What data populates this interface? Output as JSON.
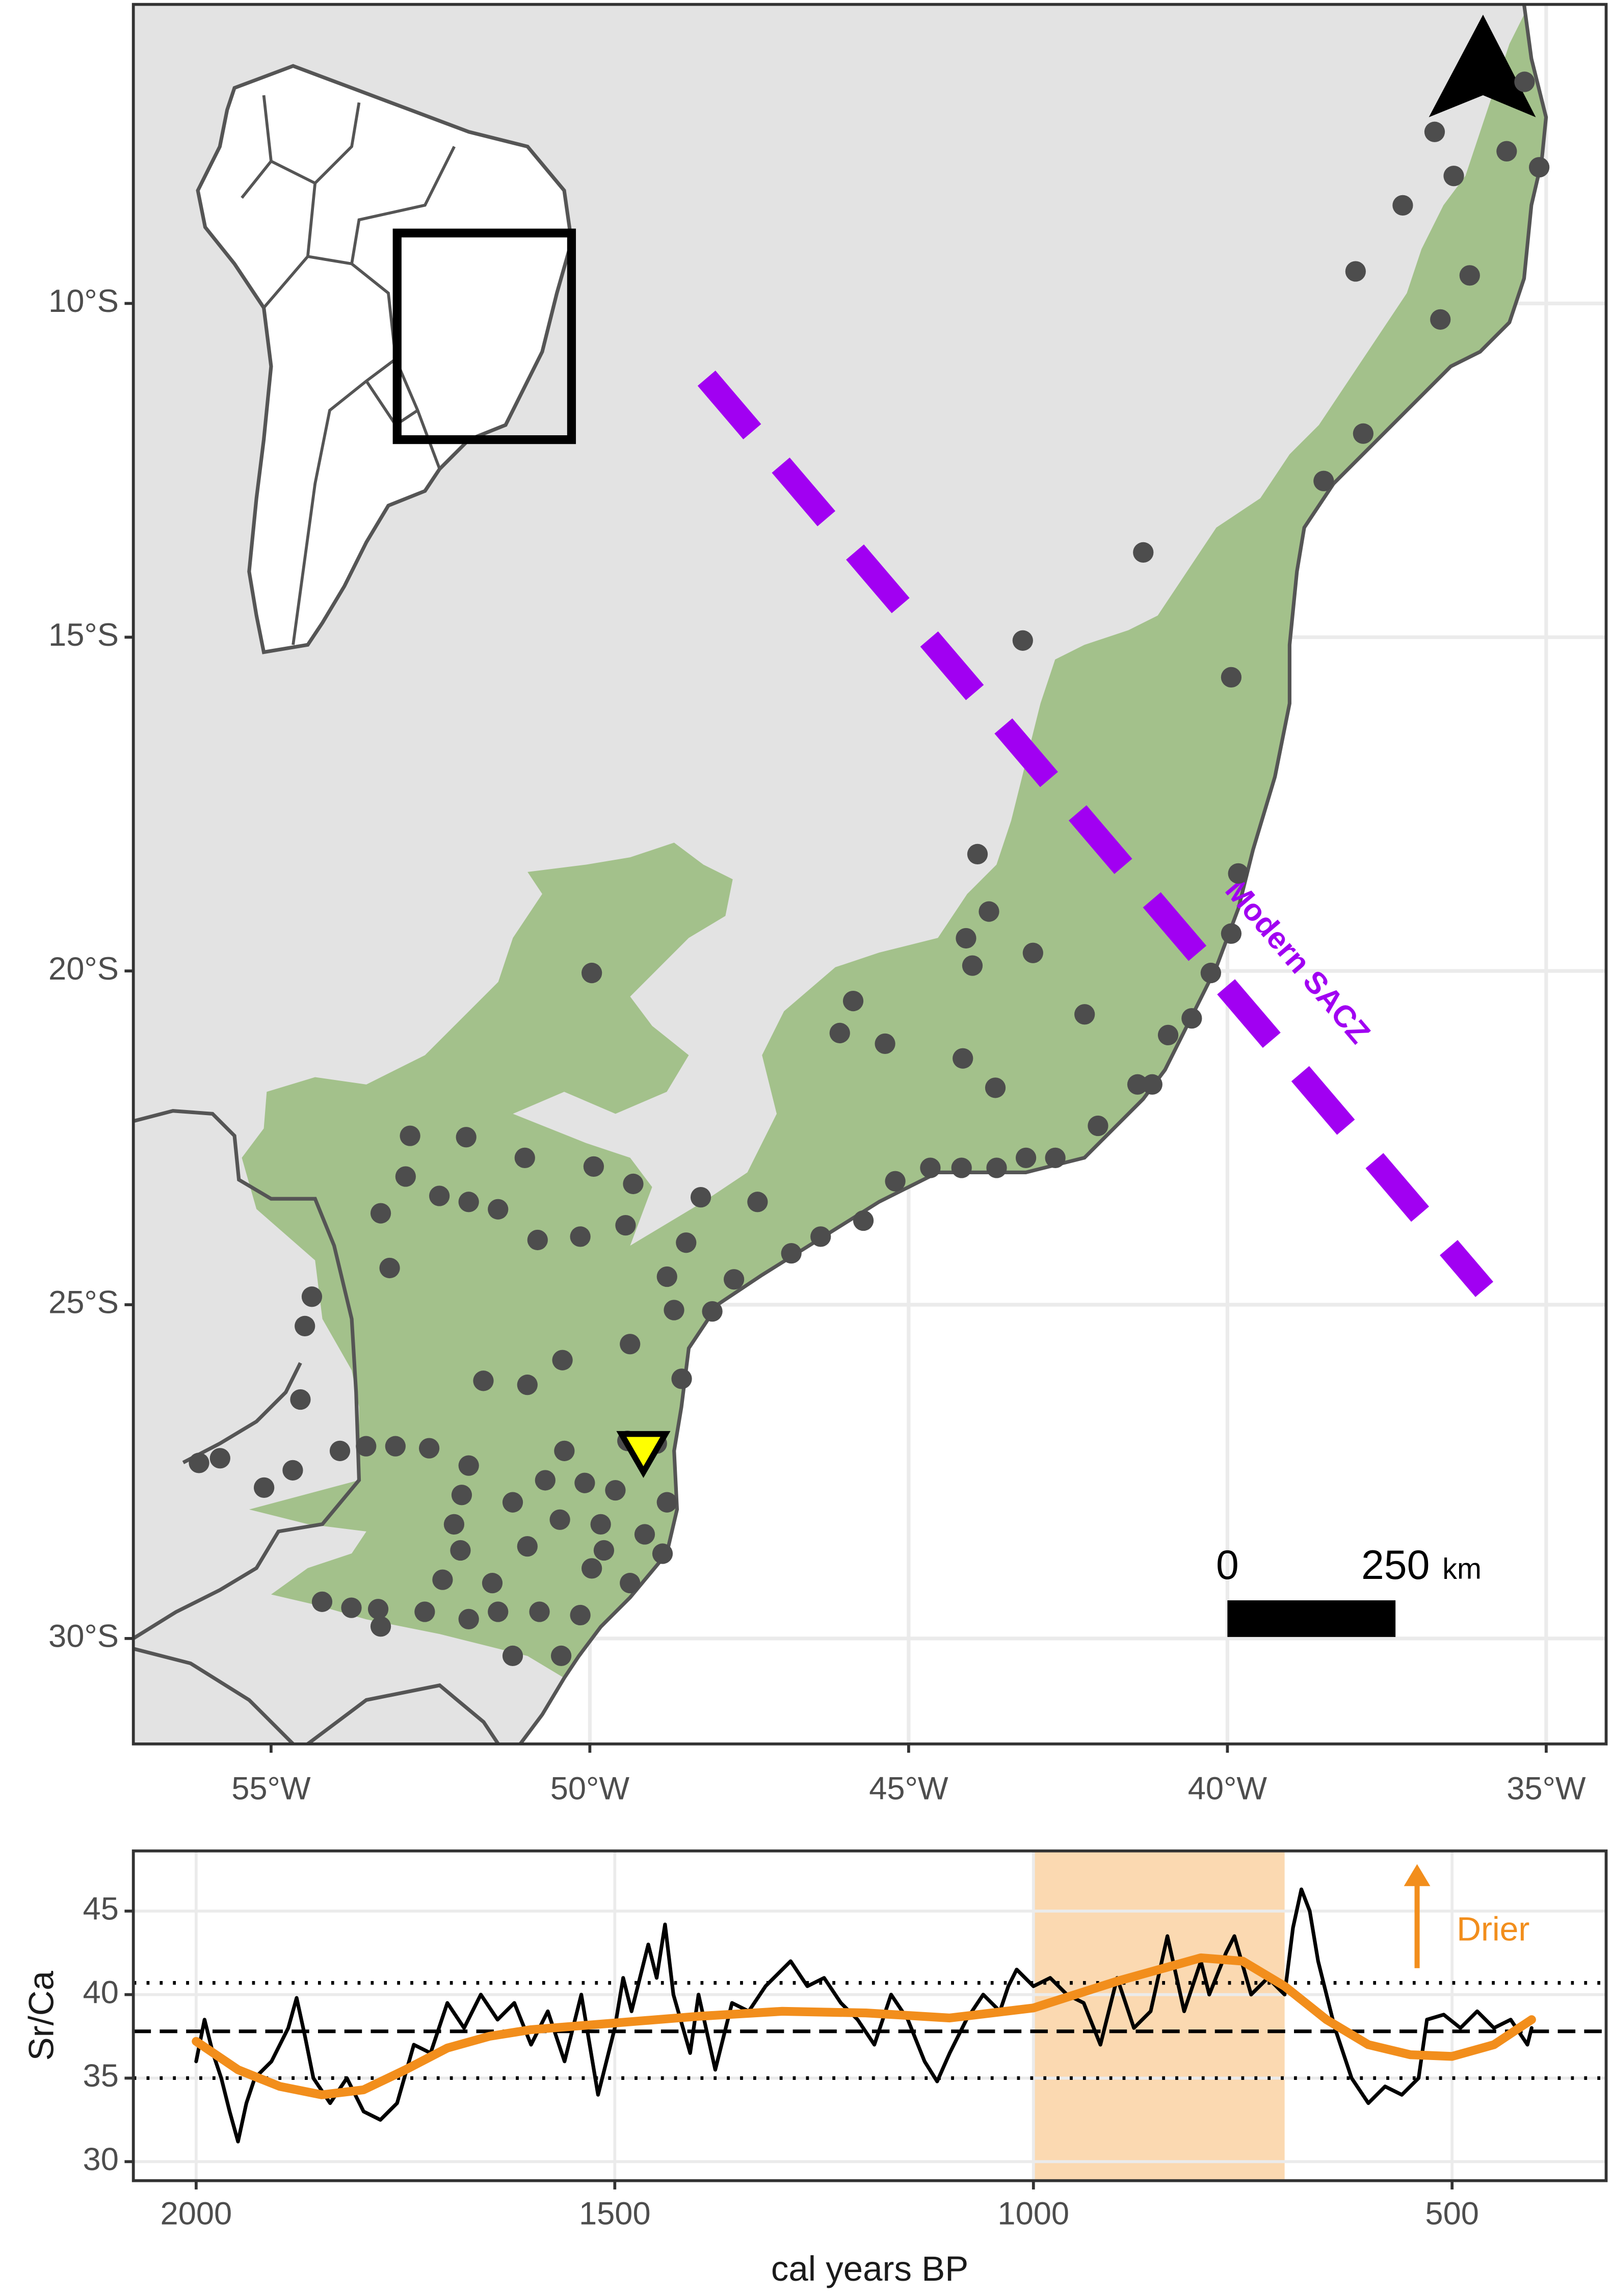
{
  "chart_data": [
    {
      "type": "map",
      "xlim": [
        -57.16,
        -34.06
      ],
      "ylim": [
        -5.52,
        -31.58
      ],
      "xticks": [
        {
          "value": -55,
          "label": "55°W"
        },
        {
          "value": -50,
          "label": "50°W"
        },
        {
          "value": -45,
          "label": "45°W"
        },
        {
          "value": -40,
          "label": "40°W"
        },
        {
          "value": -35,
          "label": "35°W"
        }
      ],
      "yticks": [
        {
          "value": -10,
          "label": "10°S"
        },
        {
          "value": -15,
          "label": "15°S"
        },
        {
          "value": -20,
          "label": "20°S"
        },
        {
          "value": -25,
          "label": "25°S"
        },
        {
          "value": -30,
          "label": "30°S"
        }
      ],
      "grid": true,
      "land_color": "#e3e3e3",
      "forest_color": "#a3c18b",
      "site_color": "#4d4d4d",
      "sites": {
        "lon": [
          -36.75,
          -36.45,
          -35.62,
          -35.34,
          -35.11,
          -37.25,
          -37.99,
          -36.66,
          -36.2,
          -37.87,
          -38.49,
          -41.32,
          -43.21,
          -39.94,
          -39.83,
          -39.94,
          -40.26,
          -40.56,
          -40.93,
          -41.18,
          -43.92,
          -43.74,
          -44.1,
          -44.0,
          -43.05,
          -42.24,
          -41.41,
          -44.15,
          -43.64,
          -45.87,
          -46.08,
          -45.37,
          -49.97,
          -42.03,
          -42.7,
          -43.16,
          -43.62,
          -44.17,
          -44.66,
          -45.21,
          -45.71,
          -46.38,
          -46.84,
          -47.37,
          -48.26,
          -47.74,
          -48.08,
          -48.49,
          -48.79,
          -49.32,
          -49.44,
          -49.94,
          -50.15,
          -50.82,
          -51.02,
          -51.44,
          -51.9,
          -52.36,
          -52.82,
          -52.89,
          -53.28,
          -51.94,
          -53.14,
          -54.36,
          -54.47,
          -54.54,
          -51.67,
          -50.98,
          -50.43,
          -49.37,
          -48.68,
          -48.56,
          -48.95,
          -49.41,
          -50.4,
          -50.7,
          -51.21,
          -51.9,
          -52.52,
          -53.05,
          -53.51,
          -53.92,
          -54.66,
          -55.11,
          -55.8,
          -56.13,
          -50.08,
          -49.6,
          -49.83,
          -49.78,
          -49.14,
          -48.86,
          -48.79,
          -49.37,
          -49.97,
          -50.47,
          -50.98,
          -51.53,
          -52.03,
          -52.31,
          -52.59,
          -53.32,
          -53.74,
          -54.2,
          -53.28,
          -51.9,
          -51.44,
          -50.79,
          -50.15,
          -50.45,
          -51.21,
          -52.13,
          -52.01
        ],
        "lat": [
          -7.43,
          -8.09,
          -7.72,
          -6.68,
          -7.96,
          -8.53,
          -9.52,
          -10.24,
          -9.58,
          -11.95,
          -12.66,
          -13.73,
          -15.05,
          -15.6,
          -18.54,
          -19.44,
          -20.03,
          -20.71,
          -20.96,
          -21.7,
          -18.25,
          -19.11,
          -19.51,
          -19.92,
          -19.73,
          -20.65,
          -21.7,
          -21.31,
          -21.75,
          -20.45,
          -20.93,
          -21.09,
          -20.03,
          -22.32,
          -22.8,
          -22.8,
          -22.95,
          -22.95,
          -22.95,
          -23.15,
          -23.74,
          -23.98,
          -24.23,
          -23.46,
          -23.39,
          -24.62,
          -25.1,
          -24.07,
          -24.58,
          -23.19,
          -23.81,
          -22.93,
          -23.98,
          -24.03,
          -22.8,
          -23.57,
          -23.46,
          -23.37,
          -22.47,
          -23.08,
          -23.63,
          -22.49,
          -24.45,
          -24.88,
          -25.32,
          -26.42,
          -26.14,
          -26.2,
          -25.83,
          -25.59,
          -25.08,
          -26.11,
          -27.08,
          -27.04,
          -27.19,
          -27.63,
          -27.96,
          -27.41,
          -27.15,
          -27.12,
          -27.12,
          -27.19,
          -27.48,
          -27.74,
          -27.3,
          -27.37,
          -27.67,
          -27.78,
          -28.29,
          -28.68,
          -28.44,
          -28.73,
          -27.96,
          -29.17,
          -28.95,
          -28.22,
          -28.62,
          -29.17,
          -28.68,
          -29.12,
          -29.6,
          -29.56,
          -29.54,
          -29.45,
          -29.82,
          -29.71,
          -29.6,
          -29.6,
          -29.65,
          -30.26,
          -30.26,
          -28.29,
          -27.85
        ]
      },
      "study_site": {
        "lon": -49.16,
        "lat": -27.2,
        "color": "#ffff00"
      },
      "sacz": {
        "label": "Modern SACZ",
        "color": "#a100f2",
        "lon": [
          -48.17,
          -35.97
        ],
        "lat": [
          -11.12,
          -24.77
        ]
      },
      "scale_bar": {
        "values": [
          0,
          250
        ],
        "unit": "km"
      }
    },
    {
      "type": "line",
      "xlabel": "cal years BP",
      "ylabel": "Sr/Ca",
      "xlim": [
        2075,
        316
      ],
      "ylim": [
        28.86,
        48.6
      ],
      "xticks": [
        2000,
        1500,
        1000,
        500
      ],
      "yticks": [
        30,
        35,
        40,
        45
      ],
      "grid": true,
      "highlight": {
        "x": [
          1000,
          700
        ],
        "color": "#fbd9b1"
      },
      "hlines": [
        {
          "value": 40.7,
          "style": "dotted"
        },
        {
          "value": 37.8,
          "style": "dashed"
        },
        {
          "value": 35.0,
          "style": "dotted"
        }
      ],
      "annotation": {
        "text": "Drier",
        "color": "#f28e1c"
      },
      "series": [
        {
          "color": "#000000",
          "x": [
            2000,
            1990,
            1980,
            1970,
            1960,
            1950,
            1940,
            1930,
            1910,
            1890,
            1880,
            1870,
            1860,
            1840,
            1820,
            1800,
            1780,
            1760,
            1740,
            1720,
            1700,
            1680,
            1660,
            1640,
            1620,
            1600,
            1580,
            1560,
            1540,
            1520,
            1500,
            1490,
            1480,
            1460,
            1450,
            1440,
            1430,
            1410,
            1400,
            1380,
            1360,
            1340,
            1320,
            1300,
            1290,
            1270,
            1250,
            1230,
            1210,
            1190,
            1170,
            1150,
            1130,
            1115,
            1100,
            1080,
            1060,
            1040,
            1030,
            1020,
            1000,
            980,
            960,
            940,
            920,
            900,
            880,
            860,
            840,
            820,
            800,
            790,
            770,
            760,
            740,
            720,
            700,
            690,
            680,
            670,
            660,
            640,
            620,
            600,
            580,
            560,
            540,
            530,
            510,
            490,
            470,
            450,
            430,
            410,
            405
          ],
          "values": [
            36,
            38.5,
            36.5,
            35,
            33,
            31.2,
            33.5,
            35,
            36,
            38,
            39.8,
            37.5,
            35,
            33.5,
            35,
            33,
            32.5,
            33.5,
            37,
            36.5,
            39.5,
            38,
            40,
            38.5,
            39.5,
            37,
            39,
            36,
            40,
            34,
            38,
            41,
            39,
            43,
            41,
            44.2,
            40,
            36.5,
            40,
            35.5,
            39.5,
            39,
            40.5,
            41.5,
            42,
            40.5,
            41,
            39.5,
            38.5,
            37,
            40,
            38.5,
            36,
            34.8,
            36.5,
            38.5,
            40,
            39,
            40.5,
            41.5,
            40.5,
            41,
            40,
            39.5,
            37,
            41,
            38,
            39,
            43.5,
            39,
            42,
            40,
            42.5,
            43.5,
            40,
            41,
            40,
            44,
            46.3,
            45,
            42,
            38,
            35,
            33.5,
            34.5,
            34,
            35,
            38.5,
            38.8,
            38,
            39,
            38,
            38.5,
            37,
            38
          ]
        },
        {
          "color": "#f28e1c",
          "x": [
            2000,
            1950,
            1900,
            1850,
            1800,
            1750,
            1700,
            1650,
            1600,
            1500,
            1400,
            1300,
            1200,
            1100,
            1000,
            900,
            800,
            750,
            700,
            650,
            600,
            550,
            500,
            450,
            405
          ],
          "values": [
            37.2,
            35.5,
            34.5,
            34,
            34.3,
            35.5,
            36.8,
            37.5,
            37.9,
            38.3,
            38.7,
            39,
            38.9,
            38.6,
            39.2,
            40.8,
            42.2,
            42,
            40.5,
            38.5,
            37,
            36.4,
            36.3,
            37,
            38.5
          ]
        }
      ]
    }
  ]
}
